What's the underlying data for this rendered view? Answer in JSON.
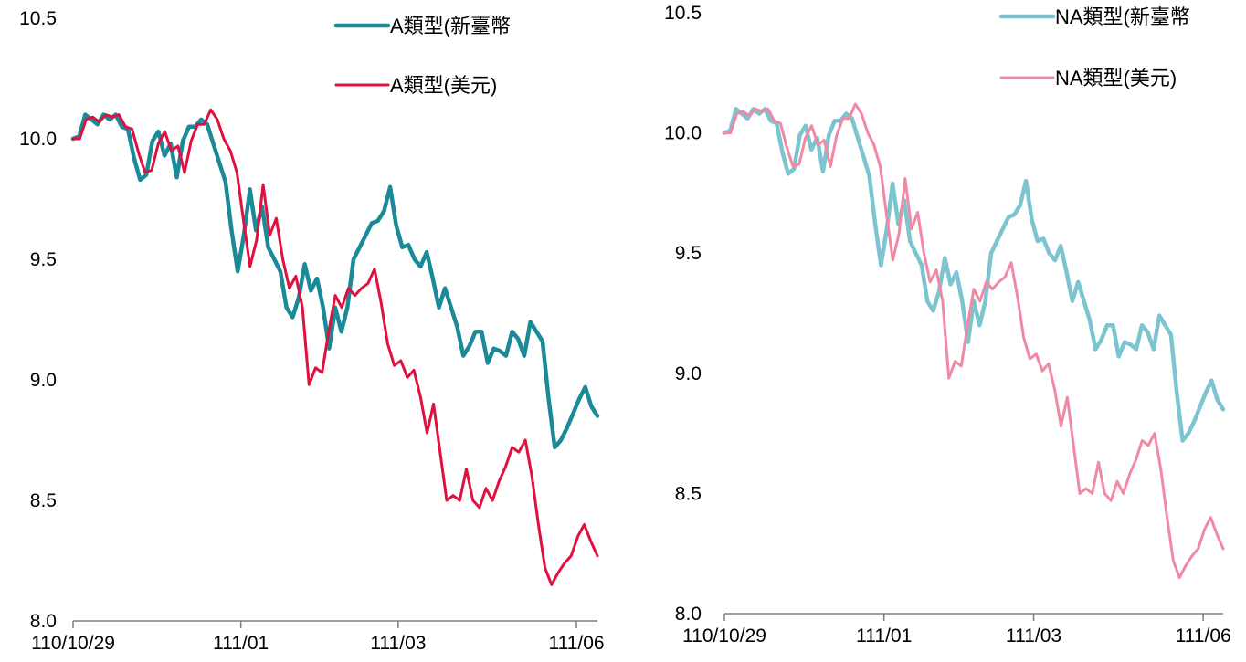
{
  "chart_data": [
    {
      "type": "line",
      "ylim": [
        8.0,
        10.5
      ],
      "yticks": [
        "10.5",
        "10.0",
        "9.5",
        "9.0",
        "8.5",
        "8.0"
      ],
      "xtick_labels": [
        "110/10/29",
        "111/01",
        "111/03",
        "111/06"
      ],
      "xtick_positions": [
        0,
        0.32,
        0.62,
        0.96
      ],
      "legend_position": "top-right",
      "series": [
        {
          "name": "A類型(新臺幣",
          "color": "#1a8a99",
          "values": [
            10.0,
            10.01,
            10.1,
            10.08,
            10.06,
            10.1,
            10.08,
            10.1,
            10.05,
            10.04,
            9.92,
            9.83,
            9.85,
            9.99,
            10.03,
            9.93,
            9.98,
            9.84,
            9.99,
            10.05,
            10.05,
            10.08,
            10.06,
            9.98,
            9.9,
            9.82,
            9.62,
            9.45,
            9.6,
            9.79,
            9.62,
            9.72,
            9.55,
            9.5,
            9.45,
            9.3,
            9.26,
            9.34,
            9.48,
            9.37,
            9.42,
            9.3,
            9.13,
            9.3,
            9.2,
            9.3,
            9.5,
            9.55,
            9.6,
            9.65,
            9.66,
            9.7,
            9.8,
            9.64,
            9.55,
            9.56,
            9.5,
            9.47,
            9.53,
            9.42,
            9.3,
            9.38,
            9.3,
            9.22,
            9.1,
            9.14,
            9.2,
            9.2,
            9.07,
            9.13,
            9.12,
            9.1,
            9.2,
            9.17,
            9.1,
            9.24,
            9.2,
            9.16,
            8.92,
            8.72,
            8.75,
            8.8,
            8.86,
            8.92,
            8.97,
            8.89,
            8.85
          ],
          "width": 4.5
        },
        {
          "name": "A類型(美元)",
          "color": "#e0103f",
          "values": [
            10.0,
            10.0,
            10.08,
            10.09,
            10.07,
            10.1,
            10.09,
            10.1,
            10.05,
            10.04,
            9.94,
            9.86,
            9.87,
            9.98,
            10.03,
            9.95,
            9.97,
            9.86,
            9.99,
            10.06,
            10.06,
            10.12,
            10.08,
            10.0,
            9.95,
            9.86,
            9.66,
            9.47,
            9.58,
            9.81,
            9.6,
            9.67,
            9.5,
            9.38,
            9.43,
            9.3,
            8.98,
            9.05,
            9.03,
            9.2,
            9.35,
            9.3,
            9.38,
            9.35,
            9.38,
            9.4,
            9.46,
            9.32,
            9.15,
            9.06,
            9.08,
            9.01,
            9.04,
            8.93,
            8.78,
            8.9,
            8.7,
            8.5,
            8.52,
            8.5,
            8.63,
            8.5,
            8.47,
            8.55,
            8.5,
            8.58,
            8.64,
            8.72,
            8.7,
            8.75,
            8.6,
            8.4,
            8.22,
            8.15,
            8.2,
            8.24,
            8.27,
            8.35,
            8.4,
            8.33,
            8.27
          ],
          "width": 3
        }
      ]
    },
    {
      "type": "line",
      "ylim": [
        8.0,
        10.5
      ],
      "yticks": [
        "10.5",
        "10.0",
        "9.5",
        "9.0",
        "8.5",
        "8.0"
      ],
      "xtick_labels": [
        "110/10/29",
        "111/01",
        "111/03",
        "111/06"
      ],
      "xtick_positions": [
        0,
        0.32,
        0.62,
        0.96
      ],
      "legend_position": "top-right",
      "series": [
        {
          "name": "NA類型(新臺幣",
          "color": "#7cc4cf",
          "values": [
            10.0,
            10.01,
            10.1,
            10.08,
            10.06,
            10.1,
            10.08,
            10.1,
            10.05,
            10.04,
            9.92,
            9.83,
            9.85,
            9.99,
            10.03,
            9.93,
            9.98,
            9.84,
            9.99,
            10.05,
            10.05,
            10.08,
            10.06,
            9.98,
            9.9,
            9.82,
            9.62,
            9.45,
            9.6,
            9.79,
            9.62,
            9.72,
            9.55,
            9.5,
            9.45,
            9.3,
            9.26,
            9.34,
            9.48,
            9.37,
            9.42,
            9.3,
            9.13,
            9.3,
            9.2,
            9.3,
            9.5,
            9.55,
            9.6,
            9.65,
            9.66,
            9.7,
            9.8,
            9.64,
            9.55,
            9.56,
            9.5,
            9.47,
            9.53,
            9.42,
            9.3,
            9.38,
            9.3,
            9.22,
            9.1,
            9.14,
            9.2,
            9.2,
            9.07,
            9.13,
            9.12,
            9.1,
            9.2,
            9.17,
            9.1,
            9.24,
            9.2,
            9.16,
            8.92,
            8.72,
            8.75,
            8.8,
            8.86,
            8.92,
            8.97,
            8.89,
            8.85
          ],
          "width": 4.5
        },
        {
          "name": "NA類型(美元)",
          "color": "#f08aa4",
          "values": [
            10.0,
            10.0,
            10.08,
            10.09,
            10.07,
            10.1,
            10.09,
            10.1,
            10.05,
            10.04,
            9.94,
            9.86,
            9.87,
            9.98,
            10.03,
            9.95,
            9.97,
            9.86,
            9.99,
            10.06,
            10.06,
            10.12,
            10.08,
            10.0,
            9.95,
            9.86,
            9.66,
            9.47,
            9.58,
            9.81,
            9.6,
            9.67,
            9.5,
            9.38,
            9.43,
            9.3,
            8.98,
            9.05,
            9.03,
            9.2,
            9.35,
            9.3,
            9.38,
            9.35,
            9.38,
            9.4,
            9.46,
            9.32,
            9.15,
            9.06,
            9.08,
            9.01,
            9.04,
            8.93,
            8.78,
            8.9,
            8.7,
            8.5,
            8.52,
            8.5,
            8.63,
            8.5,
            8.47,
            8.55,
            8.5,
            8.58,
            8.64,
            8.72,
            8.7,
            8.75,
            8.6,
            8.4,
            8.22,
            8.15,
            8.2,
            8.24,
            8.27,
            8.35,
            8.4,
            8.33,
            8.27
          ],
          "width": 3
        }
      ]
    }
  ]
}
